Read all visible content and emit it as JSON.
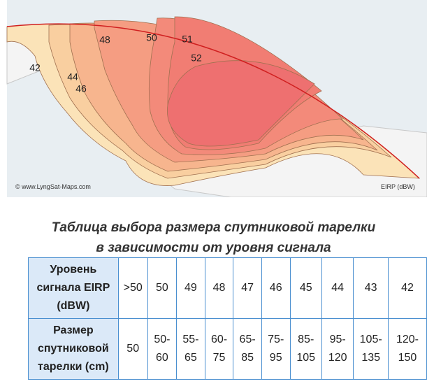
{
  "map": {
    "contour_labels": [
      "42",
      "44",
      "46",
      "48",
      "50",
      "51",
      "52"
    ],
    "watermark": "© www.LyngSat-Maps.com",
    "legend_unit": "EIRP (dBW)"
  },
  "title": [
    "Таблица выбора размера спутниковой тарелки",
    "в зависимости от уровня сигнала"
  ],
  "table": {
    "rows": [
      [
        "Уровень сигнала EIRP (dBW)",
        ">50",
        "50",
        "49",
        "48",
        "47",
        "46",
        "45",
        "44",
        "43",
        "42"
      ],
      [
        "Размер спутниковой тарелки (cm)",
        "50",
        "50-60",
        "55-65",
        "60-75",
        "65-85",
        "75-95",
        "85-105",
        "95-120",
        "105-135",
        "120-150"
      ]
    ]
  }
}
